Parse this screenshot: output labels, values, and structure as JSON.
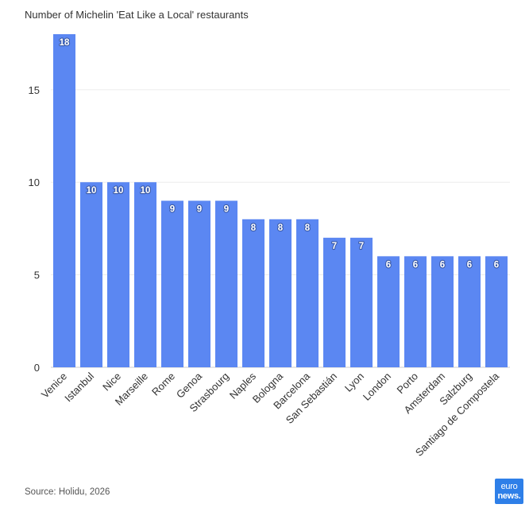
{
  "chart_data": {
    "type": "bar",
    "title": "Number of Michelin 'Eat Like a Local' restaurants",
    "xlabel": "",
    "ylabel": "",
    "categories": [
      "Venice",
      "Istanbul",
      "Nice",
      "Marseille",
      "Rome",
      "Genoa",
      "Strasbourg",
      "Naples",
      "Bologna",
      "Barcelona",
      "San Sebastián",
      "Lyon",
      "London",
      "Porto",
      "Amsterdam",
      "Salzburg",
      "Santiago de Compostela"
    ],
    "values": [
      18,
      10,
      10,
      10,
      9,
      9,
      9,
      8,
      8,
      8,
      7,
      7,
      6,
      6,
      6,
      6,
      6
    ],
    "ylim": [
      0,
      18
    ],
    "yticks": [
      0,
      5,
      10,
      15
    ],
    "grid": true,
    "legend": "none",
    "bar_color": "#5b87f2"
  },
  "footer": {
    "source": "Source: Holidu, 2026",
    "logo_line1": "euro",
    "logo_line2": "news."
  }
}
